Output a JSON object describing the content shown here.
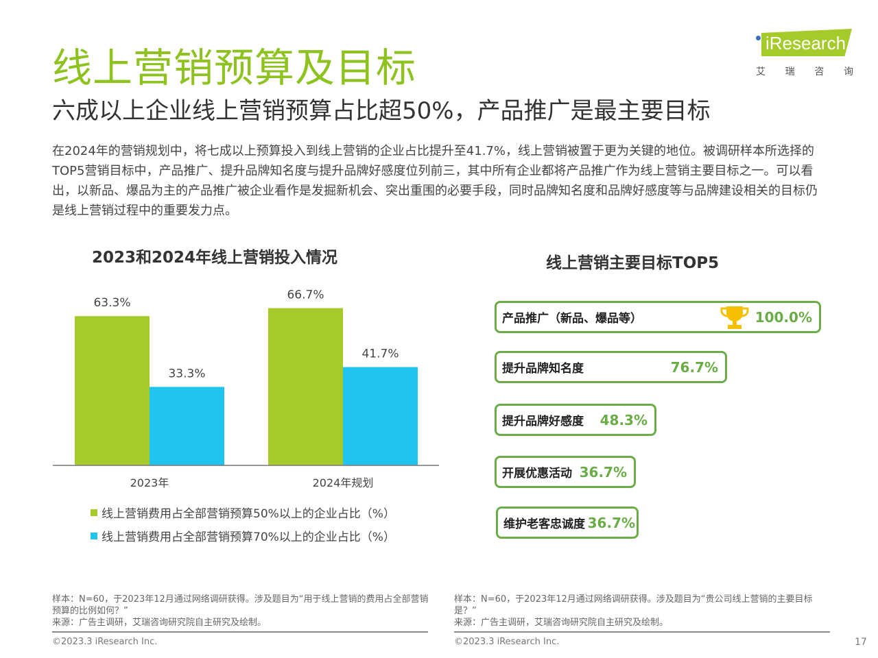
{
  "header": {
    "title": "线上营销预算及目标",
    "subtitle": "六成以上企业线上营销预算占比超50%，产品推广是最主要目标"
  },
  "logo": {
    "brand": "iResearch",
    "cn": [
      "艾",
      "瑞",
      "咨",
      "询"
    ]
  },
  "body_text": "在2024年的营销规划中，将七成以上预算投入到线上营销的企业占比提升至41.7%，线上营销被置于更为关键的地位。被调研样本所选择的TOP5营销目标中，产品推广、提升品牌知名度与提升品牌好感度位列前三，其中所有企业都将产品推广作为线上营销主要目标之一。可以看出，以新品、爆品为主的产品推广被企业看作是发掘新机会、突出重围的必要手段，同时品牌知名度和品牌好感度等与品牌建设相关的目标仍是线上营销过程中的重要发力点。",
  "chart_data": [
    {
      "type": "bar",
      "title": "2023和2024年线上营销投入情况",
      "categories": [
        "2023年",
        "2024年规划"
      ],
      "series": [
        {
          "name": "线上营销费用占全部营销预算50%以上的企业占比（%）",
          "color": "#a4cb2a",
          "values": [
            63.3,
            66.7
          ],
          "labels": [
            "63.3%",
            "66.7%"
          ]
        },
        {
          "name": "线上营销费用占全部营销预算70%以上的企业占比（%）",
          "color": "#20c4ee",
          "values": [
            33.3,
            41.7
          ],
          "labels": [
            "33.3%",
            "41.7%"
          ]
        }
      ],
      "ylim": [
        0,
        80
      ],
      "legend": "bottom"
    },
    {
      "type": "bar",
      "title": "线上营销主要目标TOP5",
      "categories": [
        "产品推广（新品、爆品等）",
        "提升品牌知名度",
        "提升品牌好感度",
        "开展优惠活动",
        "维护老客忠诚度"
      ],
      "values": [
        100.0,
        76.7,
        48.3,
        36.7,
        36.7
      ],
      "labels": [
        "100.0%",
        "76.7%",
        "48.3%",
        "36.7%",
        "36.7%"
      ]
    }
  ],
  "notes": {
    "left": {
      "sample": "样本：N=60，于2023年12月通过网络调研获得。涉及题目为“用于线上营销的费用占全部营销预算的比例如何？”",
      "source": "来源：广告主调研，艾瑞咨询研究院自主研究及绘制。"
    },
    "right": {
      "sample": "样本：N=60，于2023年12月通过网络调研获得。涉及题目为“贵公司线上营销的主要目标是？”",
      "source": "来源：广告主调研，艾瑞咨询研究院自主研究及绘制。"
    },
    "copyright": "©2023.3 iResearch Inc.",
    "page": "17"
  }
}
